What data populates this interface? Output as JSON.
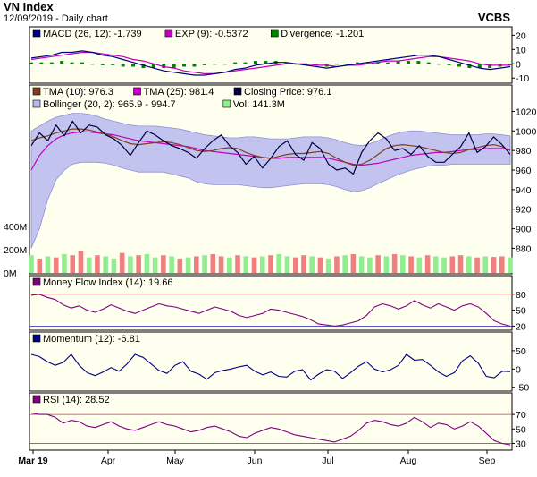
{
  "header": {
    "title": "VN Index",
    "subtitle": "12/09/2019 - Daily chart",
    "brand": "VCBS"
  },
  "colors": {
    "panel_bg": "#fffff0",
    "bollinger_fill": "#b8b8f0",
    "tma10": "#804020",
    "tma25": "#c000c0",
    "price": "#000040",
    "vol_up": "#90ee90",
    "vol_down": "#f08080",
    "mfi": "#800080",
    "momentum": "#000080",
    "rsi": "#800080",
    "macd": "#000080",
    "exp": "#c000c0",
    "divergence_pos": "#008000",
    "divergence_neg": "#008000",
    "ref_line": "#c04040",
    "ref_line_low": "#4040c0"
  },
  "x_axis": {
    "labels": [
      "Mar 19",
      "Apr",
      "May",
      "Jun",
      "Jul",
      "Aug",
      "Sep"
    ],
    "bold_first": true
  },
  "chart_data": [
    {
      "type": "line",
      "panel": "macd",
      "legend": [
        {
          "label": "MACD (26, 12): -1.739",
          "color": "#000080"
        },
        {
          "label": "EXP (9): -0.5372",
          "color": "#c000c0"
        },
        {
          "label": "Divergence: -1.201",
          "color": "#008000"
        }
      ],
      "yticks": [
        20,
        10,
        0,
        -10
      ],
      "ylim": [
        -13,
        24
      ],
      "series": [
        {
          "name": "MACD",
          "values": [
            4,
            5,
            6,
            8,
            8,
            9,
            8,
            6,
            5,
            3,
            1,
            -1,
            -3,
            -5,
            -6,
            -7,
            -8,
            -8,
            -7,
            -6,
            -4,
            -3,
            -1,
            0,
            1,
            1,
            0,
            -1,
            -2,
            -3,
            -2,
            -1,
            0,
            1,
            2,
            3,
            4,
            5,
            6,
            6,
            5,
            3,
            1,
            -1,
            -3,
            -4,
            -3,
            -2
          ]
        },
        {
          "name": "EXP",
          "values": [
            3,
            4,
            5,
            6,
            7,
            8,
            8,
            7,
            6,
            5,
            3,
            2,
            0,
            -2,
            -3,
            -5,
            -6,
            -7,
            -7,
            -6,
            -5,
            -4,
            -3,
            -2,
            -1,
            0,
            0,
            0,
            -1,
            -1,
            -2,
            -1,
            -1,
            0,
            1,
            2,
            2,
            3,
            4,
            5,
            5,
            4,
            3,
            2,
            0,
            -1,
            -1,
            -1
          ]
        }
      ],
      "divergence": [
        1,
        1,
        1,
        2,
        1,
        1,
        0,
        -1,
        -1,
        -2,
        -2,
        -3,
        -3,
        -3,
        -3,
        -2,
        -2,
        -1,
        0,
        0,
        1,
        1,
        2,
        2,
        2,
        1,
        0,
        -1,
        -1,
        -2,
        0,
        0,
        1,
        1,
        1,
        1,
        2,
        2,
        2,
        1,
        0,
        -1,
        -2,
        -3,
        -3,
        -3,
        -2,
        -1
      ]
    },
    {
      "type": "line",
      "panel": "price",
      "legend": [
        {
          "label": "TMA (10): 976.3",
          "color": "#804020"
        },
        {
          "label": "TMA (25): 981.4",
          "color": "#c000c0"
        },
        {
          "label": "Closing Price: 976.1",
          "color": "#000040"
        },
        {
          "label": "Bollinger (20, 2): 965.9 - 994.7",
          "color": "#b8b8f0"
        },
        {
          "label": "Vol: 141.3M",
          "color": "#90ee90"
        }
      ],
      "yticks": [
        1020,
        1000,
        980,
        960,
        940,
        920,
        900,
        880
      ],
      "ylim": [
        874,
        1025
      ],
      "vol_ticks": [
        "400M",
        "200M",
        "0M"
      ],
      "vol_max": 420,
      "series": [
        {
          "name": "Closing Price",
          "values": [
            985,
            998,
            990,
            1006,
            995,
            1010,
            998,
            1006,
            1004,
            996,
            992,
            985,
            975,
            988,
            1000,
            996,
            990,
            985,
            982,
            978,
            972,
            982,
            990,
            996,
            985,
            978,
            966,
            974,
            962,
            972,
            984,
            990,
            976,
            970,
            988,
            982,
            966,
            960,
            962,
            956,
            978,
            990,
            998,
            992,
            980,
            982,
            976,
            985,
            974,
            968,
            968,
            976,
            984,
            998,
            978,
            984,
            994,
            986,
            976
          ]
        },
        {
          "name": "TMA (10)",
          "values": [
            990,
            993,
            995,
            998,
            1000,
            1002,
            1002,
            1001,
            999,
            997,
            994,
            990,
            987,
            986,
            987,
            988,
            989,
            988,
            986,
            983,
            980,
            979,
            980,
            982,
            983,
            982,
            978,
            975,
            973,
            972,
            974,
            976,
            977,
            977,
            978,
            979,
            977,
            972,
            968,
            965,
            966,
            970,
            976,
            982,
            985,
            986,
            985,
            984,
            982,
            980,
            978,
            977,
            978,
            981,
            983,
            985,
            986,
            984,
            980
          ]
        },
        {
          "name": "TMA (25)",
          "values": [
            960,
            975,
            985,
            992,
            996,
            998,
            999,
            999,
            998,
            997,
            996,
            994,
            992,
            990,
            989,
            988,
            987,
            986,
            985,
            984,
            982,
            980,
            979,
            978,
            977,
            976,
            975,
            974,
            973,
            972,
            972,
            973,
            973,
            973,
            973,
            973,
            972,
            970,
            968,
            966,
            965,
            966,
            967,
            969,
            971,
            973,
            975,
            976,
            977,
            978,
            978,
            979,
            980,
            981,
            981,
            982,
            982,
            982,
            981
          ]
        },
        {
          "name": "Bollinger Upper",
          "values": [
            1000,
            1005,
            1010,
            1014,
            1016,
            1018,
            1018,
            1017,
            1015,
            1012,
            1010,
            1008,
            1006,
            1005,
            1005,
            1005,
            1004,
            1003,
            1002,
            1000,
            998,
            996,
            995,
            994,
            993,
            993,
            994,
            994,
            993,
            992,
            992,
            992,
            993,
            994,
            994,
            994,
            993,
            991,
            988,
            986,
            985,
            987,
            990,
            994,
            997,
            999,
            1000,
            1000,
            999,
            998,
            997,
            996,
            996,
            996,
            996,
            997,
            997,
            996,
            995
          ]
        },
        {
          "name": "Bollinger Lower",
          "values": [
            880,
            900,
            930,
            950,
            960,
            966,
            968,
            968,
            968,
            967,
            965,
            962,
            960,
            958,
            958,
            958,
            958,
            956,
            954,
            952,
            948,
            946,
            945,
            945,
            945,
            945,
            944,
            943,
            942,
            942,
            943,
            944,
            945,
            946,
            946,
            946,
            945,
            943,
            940,
            938,
            939,
            942,
            946,
            950,
            954,
            957,
            960,
            962,
            964,
            965,
            965,
            966,
            966,
            966,
            966,
            966,
            966,
            966,
            966
          ]
        }
      ],
      "volume": [
        160,
        130,
        150,
        140,
        170,
        160,
        200,
        140,
        160,
        150,
        130,
        180,
        150,
        160,
        170,
        140,
        160,
        150,
        130,
        140,
        150,
        160,
        170,
        150,
        140,
        160,
        150,
        140,
        150,
        160,
        170,
        150,
        140,
        160,
        150,
        140,
        130,
        150,
        160,
        170,
        150,
        140,
        160,
        150,
        170,
        160,
        150,
        140,
        160,
        150,
        140,
        150,
        160,
        150,
        140,
        150,
        145,
        150,
        141
      ],
      "volume_up": [
        true,
        false,
        true,
        false,
        true,
        false,
        false,
        true,
        false,
        true,
        true,
        false,
        true,
        false,
        true,
        true,
        false,
        true,
        false,
        true,
        false,
        true,
        false,
        false,
        true,
        false,
        true,
        false,
        true,
        false,
        true,
        true,
        false,
        false,
        true,
        false,
        true,
        false,
        true,
        false,
        true,
        true,
        false,
        true,
        false,
        true,
        false,
        true,
        false,
        true,
        true,
        false,
        false,
        true,
        false,
        true,
        false,
        false,
        true
      ]
    },
    {
      "type": "line",
      "panel": "mfi",
      "legend": [
        {
          "label": "Money Flow Index (14): 19.66",
          "color": "#800080"
        }
      ],
      "yticks": [
        80,
        50,
        20
      ],
      "ylim": [
        14,
        88
      ],
      "series": [
        {
          "name": "Money Flow Index",
          "values": [
            78,
            80,
            74,
            70,
            60,
            54,
            58,
            50,
            46,
            52,
            60,
            54,
            48,
            44,
            50,
            56,
            62,
            58,
            56,
            52,
            48,
            44,
            50,
            56,
            52,
            48,
            40,
            36,
            40,
            44,
            52,
            50,
            46,
            42,
            38,
            32,
            24,
            22,
            20,
            22,
            26,
            30,
            40,
            56,
            62,
            58,
            52,
            58,
            68,
            60,
            54,
            62,
            56,
            50,
            58,
            62,
            56,
            44,
            30,
            24,
            20
          ]
        }
      ]
    },
    {
      "type": "line",
      "panel": "momentum",
      "legend": [
        {
          "label": "Momentum (12): -6.81",
          "color": "#000080"
        }
      ],
      "yticks": [
        50,
        0,
        -50
      ],
      "ylim": [
        -58,
        62
      ],
      "series": [
        {
          "name": "Momentum",
          "values": [
            40,
            34,
            20,
            10,
            18,
            40,
            10,
            -10,
            -18,
            -8,
            4,
            -6,
            14,
            40,
            32,
            14,
            -4,
            -12,
            10,
            20,
            -6,
            -14,
            -28,
            -10,
            -4,
            0,
            6,
            10,
            -6,
            -16,
            -8,
            -20,
            -22,
            -6,
            -2,
            -30,
            -14,
            -2,
            -6,
            -26,
            -10,
            8,
            20,
            0,
            -8,
            -2,
            10,
            40,
            24,
            26,
            10,
            -8,
            -20,
            -10,
            22,
            36,
            16,
            -20,
            -24,
            -6,
            -7
          ]
        }
      ]
    },
    {
      "type": "line",
      "panel": "rsi",
      "legend": [
        {
          "label": "RSI (14): 28.52",
          "color": "#800080"
        }
      ],
      "yticks": [
        70,
        50,
        30
      ],
      "ylim": [
        22,
        80
      ],
      "series": [
        {
          "name": "RSI",
          "values": [
            72,
            70,
            70,
            66,
            58,
            62,
            60,
            54,
            52,
            56,
            60,
            54,
            50,
            48,
            52,
            56,
            60,
            56,
            54,
            50,
            46,
            48,
            52,
            54,
            50,
            46,
            40,
            38,
            44,
            48,
            52,
            50,
            46,
            42,
            40,
            38,
            36,
            34,
            32,
            36,
            40,
            48,
            58,
            62,
            60,
            56,
            54,
            58,
            66,
            60,
            52,
            58,
            56,
            50,
            54,
            60,
            54,
            44,
            34,
            30,
            28
          ]
        }
      ]
    }
  ]
}
